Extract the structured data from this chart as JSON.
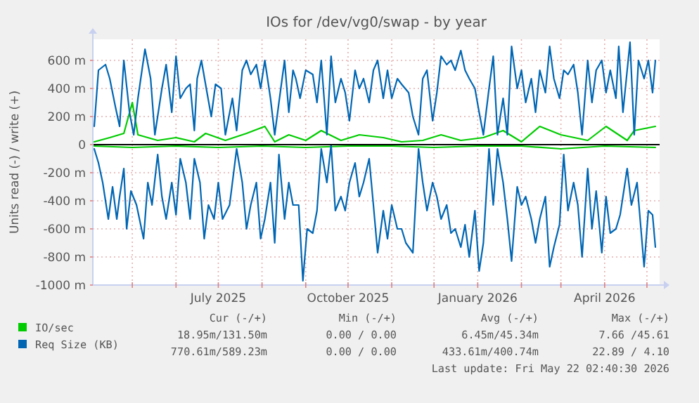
{
  "chart_data": {
    "type": "line",
    "title": "IOs for /dev/vg0/swap - by year",
    "ylabel": "Units read (-) / write (+)",
    "xlim": [
      "2025-04-03",
      "2026-05-10"
    ],
    "xticks": [
      {
        "value": "2025-05-01",
        "label": null
      },
      {
        "value": "2025-06-01",
        "label": null
      },
      {
        "value": "2025-07-01",
        "label": "July 2025"
      },
      {
        "value": "2025-08-01",
        "label": null
      },
      {
        "value": "2025-09-01",
        "label": null
      },
      {
        "value": "2025-10-01",
        "label": "October 2025"
      },
      {
        "value": "2025-11-01",
        "label": null
      },
      {
        "value": "2025-12-01",
        "label": null
      },
      {
        "value": "2026-01-01",
        "label": "January 2026"
      },
      {
        "value": "2026-02-01",
        "label": null
      },
      {
        "value": "2026-03-01",
        "label": null
      },
      {
        "value": "2026-04-01",
        "label": "April 2026"
      },
      {
        "value": "2026-05-01",
        "label": null
      }
    ],
    "ylim": [
      -1000,
      750
    ],
    "yticks": [
      {
        "value": -1000,
        "label": "-1000 m"
      },
      {
        "value": -800,
        "label": "-800 m"
      },
      {
        "value": -600,
        "label": "-600 m"
      },
      {
        "value": -400,
        "label": "-400 m"
      },
      {
        "value": -200,
        "label": "-200 m"
      },
      0,
      {
        "value": 200,
        "label": "200 m"
      },
      {
        "value": 400,
        "label": "400 m"
      },
      {
        "value": 600,
        "label": "600 m"
      }
    ],
    "grid": true,
    "legend": "bottom left",
    "ref_lines": [
      {
        "axis": "y",
        "value": 0,
        "color": "#000000"
      }
    ],
    "series": [
      {
        "name": "IO/sec",
        "color": "#00cc00",
        "x": [
          "2025-04-04",
          "2025-04-15",
          "2025-04-25",
          "2025-05-01",
          "2025-05-05",
          "2025-05-19",
          "2025-06-01",
          "2025-06-14",
          "2025-06-22",
          "2025-07-06",
          "2025-07-21",
          "2025-08-03",
          "2025-08-10",
          "2025-08-20",
          "2025-09-01",
          "2025-09-12",
          "2025-09-26",
          "2025-10-09",
          "2025-10-26",
          "2025-11-08",
          "2025-11-23",
          "2025-12-06",
          "2025-12-20",
          "2026-01-05",
          "2026-01-19",
          "2026-02-01",
          "2026-02-14",
          "2026-03-01",
          "2026-03-20",
          "2026-04-02",
          "2026-04-17",
          "2026-04-22",
          "2026-05-07"
        ],
        "values": [
          20,
          50,
          80,
          300,
          70,
          30,
          50,
          20,
          80,
          30,
          80,
          130,
          20,
          70,
          30,
          100,
          30,
          70,
          50,
          20,
          30,
          70,
          30,
          50,
          100,
          20,
          130,
          70,
          30,
          130,
          30,
          100,
          130
        ]
      },
      {
        "color": "#00cc00",
        "x": [
          "2025-04-04",
          "2025-05-01",
          "2025-06-01",
          "2025-07-01",
          "2025-08-01",
          "2025-09-01",
          "2025-10-01",
          "2025-11-01",
          "2025-12-01",
          "2026-01-01",
          "2026-02-01",
          "2026-03-01",
          "2026-04-01",
          "2026-05-07"
        ],
        "values": [
          -10,
          -20,
          -10,
          -20,
          -10,
          -20,
          -10,
          -10,
          -20,
          -10,
          -10,
          -30,
          -10,
          -20
        ]
      },
      {
        "name": "Req Size (KB)",
        "color": "#0066b3",
        "x": [
          "2025-04-04",
          "2025-04-07",
          "2025-04-12",
          "2025-04-15",
          "2025-04-19",
          "2025-04-22",
          "2025-04-25",
          "2025-04-29",
          "2025-05-02",
          "2025-05-05",
          "2025-05-10",
          "2025-05-14",
          "2025-05-17",
          "2025-05-22",
          "2025-05-25",
          "2025-05-29",
          "2025-06-01",
          "2025-06-04",
          "2025-06-08",
          "2025-06-11",
          "2025-06-14",
          "2025-06-16",
          "2025-06-19",
          "2025-06-23",
          "2025-06-26",
          "2025-06-29",
          "2025-07-03",
          "2025-07-06",
          "2025-07-11",
          "2025-07-14",
          "2025-07-18",
          "2025-07-21",
          "2025-07-24",
          "2025-07-28",
          "2025-07-31",
          "2025-08-03",
          "2025-08-07",
          "2025-08-10",
          "2025-08-13",
          "2025-08-17",
          "2025-08-20",
          "2025-08-23",
          "2025-08-25",
          "2025-08-28",
          "2025-09-01",
          "2025-09-06",
          "2025-09-09",
          "2025-09-12",
          "2025-09-16",
          "2025-09-19",
          "2025-09-22",
          "2025-09-26",
          "2025-09-29",
          "2025-10-02",
          "2025-10-06",
          "2025-10-09",
          "2025-10-12",
          "2025-10-16",
          "2025-10-19",
          "2025-10-22",
          "2025-10-26",
          "2025-10-29",
          "2025-11-01",
          "2025-11-05",
          "2025-11-08",
          "2025-11-13",
          "2025-11-16",
          "2025-11-20",
          "2025-11-23",
          "2025-11-26",
          "2025-11-30",
          "2025-12-03",
          "2025-12-06",
          "2025-12-10",
          "2025-12-13",
          "2025-12-16",
          "2025-12-20",
          "2025-12-23",
          "2025-12-26",
          "2025-12-30",
          "2026-01-02",
          "2026-01-05",
          "2026-01-09",
          "2026-01-12",
          "2026-01-15",
          "2026-01-19",
          "2026-01-22",
          "2026-01-25",
          "2026-01-29",
          "2026-02-01",
          "2026-02-04",
          "2026-02-08",
          "2026-02-11",
          "2026-02-14",
          "2026-02-18",
          "2026-02-21",
          "2026-02-24",
          "2026-02-28",
          "2026-03-03",
          "2026-03-06",
          "2026-03-10",
          "2026-03-13",
          "2026-03-16",
          "2026-03-20",
          "2026-03-23",
          "2026-03-26",
          "2026-03-30",
          "2026-04-02",
          "2026-04-05",
          "2026-04-09",
          "2026-04-11",
          "2026-04-14",
          "2026-04-17",
          "2026-04-19",
          "2026-04-22",
          "2026-04-25",
          "2026-04-29",
          "2026-05-02",
          "2026-05-05",
          "2026-05-07"
        ],
        "values": [
          130,
          530,
          570,
          470,
          270,
          130,
          600,
          230,
          70,
          330,
          680,
          470,
          70,
          400,
          570,
          230,
          630,
          330,
          400,
          430,
          100,
          470,
          600,
          370,
          200,
          430,
          400,
          70,
          330,
          100,
          530,
          600,
          500,
          570,
          400,
          600,
          330,
          70,
          300,
          600,
          230,
          530,
          470,
          330,
          530,
          500,
          300,
          600,
          70,
          630,
          300,
          470,
          370,
          170,
          530,
          400,
          470,
          300,
          530,
          600,
          330,
          530,
          330,
          470,
          430,
          370,
          200,
          70,
          470,
          530,
          170,
          370,
          630,
          570,
          600,
          530,
          670,
          530,
          470,
          400,
          230,
          70,
          400,
          630,
          70,
          330,
          70,
          700,
          400,
          530,
          300,
          470,
          230,
          530,
          370,
          700,
          470,
          330,
          530,
          500,
          570,
          370,
          70,
          600,
          300,
          530,
          600,
          370,
          530,
          330,
          700,
          230,
          530,
          730,
          70,
          600,
          470,
          600,
          370,
          600
        ]
      },
      {
        "color": "#0066b3",
        "x": [
          "2025-04-04",
          "2025-04-07",
          "2025-04-10",
          "2025-04-14",
          "2025-04-17",
          "2025-04-20",
          "2025-04-22",
          "2025-04-25",
          "2025-04-27",
          "2025-04-30",
          "2025-05-04",
          "2025-05-09",
          "2025-05-12",
          "2025-05-15",
          "2025-05-19",
          "2025-05-22",
          "2025-05-25",
          "2025-05-29",
          "2025-06-01",
          "2025-06-04",
          "2025-06-08",
          "2025-06-11",
          "2025-06-14",
          "2025-06-18",
          "2025-06-21",
          "2025-06-24",
          "2025-06-28",
          "2025-07-01",
          "2025-07-04",
          "2025-07-09",
          "2025-07-14",
          "2025-07-18",
          "2025-07-21",
          "2025-07-24",
          "2025-07-28",
          "2025-07-31",
          "2025-08-03",
          "2025-08-07",
          "2025-08-10",
          "2025-08-13",
          "2025-08-17",
          "2025-08-20",
          "2025-08-23",
          "2025-08-27",
          "2025-08-30",
          "2025-09-02",
          "2025-09-06",
          "2025-09-09",
          "2025-09-12",
          "2025-09-16",
          "2025-09-19",
          "2025-09-22",
          "2025-09-26",
          "2025-09-29",
          "2025-10-02",
          "2025-10-06",
          "2025-10-09",
          "2025-10-12",
          "2025-10-16",
          "2025-10-19",
          "2025-10-22",
          "2025-10-26",
          "2025-10-29",
          "2025-11-01",
          "2025-11-05",
          "2025-11-08",
          "2025-11-11",
          "2025-11-16",
          "2025-11-20",
          "2025-11-23",
          "2025-11-26",
          "2025-11-30",
          "2025-12-03",
          "2025-12-06",
          "2025-12-10",
          "2025-12-13",
          "2025-12-16",
          "2025-12-20",
          "2025-12-23",
          "2025-12-26",
          "2025-12-30",
          "2026-01-02",
          "2026-01-05",
          "2026-01-09",
          "2026-01-12",
          "2026-01-15",
          "2026-01-19",
          "2026-01-22",
          "2026-01-25",
          "2026-01-29",
          "2026-02-01",
          "2026-02-04",
          "2026-02-08",
          "2026-02-11",
          "2026-02-14",
          "2026-02-18",
          "2026-02-21",
          "2026-02-24",
          "2026-02-28",
          "2026-03-03",
          "2026-03-06",
          "2026-03-10",
          "2026-03-13",
          "2026-03-16",
          "2026-03-20",
          "2026-03-23",
          "2026-03-26",
          "2026-03-30",
          "2026-04-02",
          "2026-04-05",
          "2026-04-09",
          "2026-04-12",
          "2026-04-17",
          "2026-04-20",
          "2026-04-24",
          "2026-04-29",
          "2026-05-02",
          "2026-05-05",
          "2026-05-07"
        ],
        "values": [
          -30,
          -130,
          -270,
          -530,
          -300,
          -530,
          -370,
          -170,
          -600,
          -330,
          -430,
          -670,
          -270,
          -430,
          -70,
          -370,
          -530,
          -270,
          -500,
          -100,
          -270,
          -530,
          -100,
          -270,
          -670,
          -430,
          -530,
          -270,
          -530,
          -430,
          -30,
          -270,
          -600,
          -430,
          -270,
          -670,
          -530,
          -270,
          -700,
          -70,
          -530,
          -270,
          -430,
          -430,
          -970,
          -600,
          -630,
          -470,
          -30,
          -270,
          0,
          -470,
          -370,
          -470,
          -270,
          -130,
          -370,
          -270,
          -100,
          -430,
          -770,
          -470,
          -670,
          -430,
          -600,
          -600,
          -700,
          -770,
          -30,
          -270,
          -470,
          -270,
          -370,
          -530,
          -430,
          -630,
          -600,
          -730,
          -570,
          -800,
          -470,
          -900,
          -700,
          -30,
          -430,
          -30,
          -270,
          -530,
          -830,
          -300,
          -430,
          -370,
          -530,
          -700,
          -530,
          -370,
          -870,
          -730,
          -570,
          -70,
          -470,
          -270,
          -430,
          -800,
          -170,
          -600,
          -330,
          -770,
          -370,
          -630,
          -600,
          -500,
          -170,
          -430,
          -270,
          -870,
          -470,
          -500,
          -730
        ]
      }
    ],
    "annotations": [
      "Cur (-/+)",
      "Min (-/+)",
      "Avg (-/+)",
      "Max (-/+)",
      "18.95m/131.50m",
      "0.00 / 0.00",
      "6.45m/45.34m",
      "7.66 /45.61",
      "770.61m/589.23m",
      "0.00 / 0.00",
      "433.61m/400.74m",
      "22.89 / 4.10",
      "Last update: Fri May 22 02:40:30 2026"
    ]
  }
}
